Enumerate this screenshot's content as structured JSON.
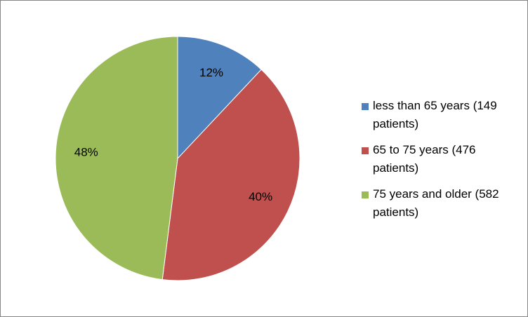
{
  "chart_data": {
    "type": "pie",
    "categories": [
      "less than 65 years (149 patients)",
      "65 to 75 years (476 patients)",
      "75 years and older (582 patients)"
    ],
    "values": [
      12,
      40,
      48
    ],
    "value_labels": [
      "12%",
      "40%",
      "48%"
    ],
    "colors": [
      "#4f81bd",
      "#c0504d",
      "#9bbb59"
    ],
    "legend": "right"
  }
}
